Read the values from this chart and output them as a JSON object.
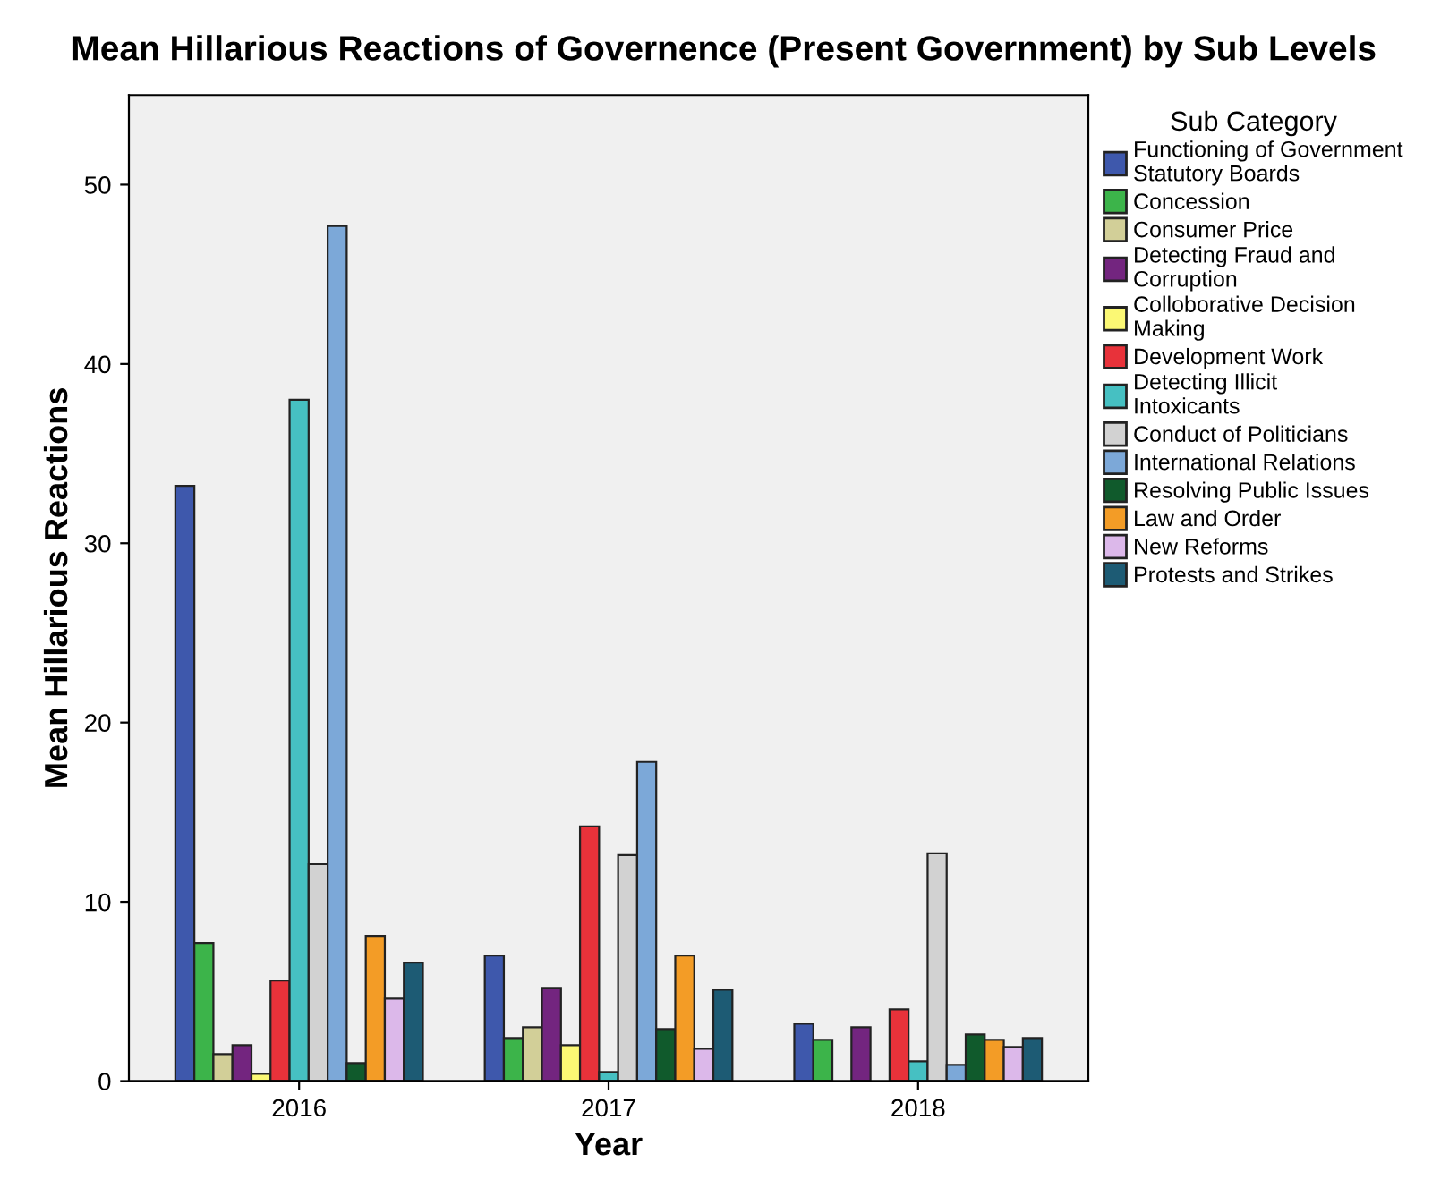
{
  "chart_data": {
    "type": "bar",
    "title": "Mean Hillarious Reactions of Governence (Present Government) by Sub Levels",
    "xlabel": "Year",
    "ylabel": "Mean Hillarious Reactions",
    "legend_title": "Sub Category",
    "legend": "right",
    "categories": [
      "2016",
      "2017",
      "2018"
    ],
    "ylim": [
      0,
      55
    ],
    "yticks": [
      0,
      10,
      20,
      30,
      40,
      50
    ],
    "grid": false,
    "series": [
      {
        "name": "Functioning of Government Statutory Boards",
        "color": "#3e58ac",
        "values": [
          33.2,
          7.0,
          3.2
        ]
      },
      {
        "name": "Concession",
        "color": "#3cb44a",
        "values": [
          7.7,
          2.4,
          2.3
        ]
      },
      {
        "name": "Consumer Price",
        "color": "#d2cf98",
        "values": [
          1.5,
          3.0,
          null
        ]
      },
      {
        "name": "Detecting Fraud and Corruption",
        "color": "#73257f",
        "values": [
          2.0,
          5.2,
          3.0
        ]
      },
      {
        "name": "Colloborative Decision Making",
        "color": "#fbf874",
        "values": [
          0.4,
          2.0,
          null
        ]
      },
      {
        "name": "Development Work",
        "color": "#e8323a",
        "values": [
          5.6,
          14.2,
          4.0
        ]
      },
      {
        "name": "Detecting Illicit Intoxicants",
        "color": "#46c0c2",
        "values": [
          38.0,
          0.5,
          1.1
        ]
      },
      {
        "name": "Conduct of Politicians",
        "color": "#d2d2d2",
        "values": [
          12.1,
          12.6,
          12.7
        ]
      },
      {
        "name": "International Relations",
        "color": "#7ca8d8",
        "values": [
          47.7,
          17.8,
          0.9
        ]
      },
      {
        "name": "Resolving Public Issues",
        "color": "#105a2c",
        "values": [
          1.0,
          2.9,
          2.6
        ]
      },
      {
        "name": "Law and Order",
        "color": "#f39c26",
        "values": [
          8.1,
          7.0,
          2.3
        ]
      },
      {
        "name": "New Reforms",
        "color": "#dcb8ea",
        "values": [
          4.6,
          1.8,
          1.9
        ]
      },
      {
        "name": "Protests and Strikes",
        "color": "#1d5b74",
        "values": [
          6.6,
          5.1,
          2.4
        ]
      }
    ]
  }
}
